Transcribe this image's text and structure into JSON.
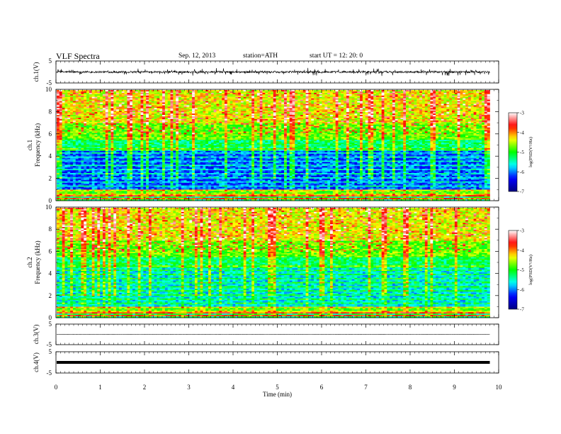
{
  "header": {
    "title": "VLF  Spectra",
    "date": "Sep. 12, 2013",
    "station": "station=ATH",
    "start": "start  UT  =   12: 20: 0"
  },
  "chart_data": [
    {
      "type": "line",
      "panel": "ch1",
      "ylabel": "ch.1(V)",
      "ylim": [
        -5,
        5
      ],
      "yticks": [
        "5",
        "-5"
      ],
      "series_color": "#000000",
      "description_values": "noisy waveform centered at 0 V, amplitude about ±1 V with spikes to about ±2 V"
    },
    {
      "type": "heatmap",
      "panel": "ch1-spectrogram",
      "ylabel_top": "ch.1",
      "ylabel": "Frequency  (kHz)",
      "ylim": [
        0,
        10
      ],
      "yticks": [
        "0",
        "2",
        "4",
        "6",
        "8",
        "10"
      ],
      "colorbar": {
        "label": "log(PSD(V²/Hz)",
        "ticks": [
          "-3",
          "-4",
          "-5",
          "-6",
          "-7"
        ],
        "range": [
          -7,
          -3
        ]
      }
    },
    {
      "type": "heatmap",
      "panel": "ch2-spectrogram",
      "ylabel_top": "ch.2",
      "ylabel": "Frequency  (kHz)",
      "ylim": [
        0,
        10
      ],
      "yticks": [
        "0",
        "2",
        "4",
        "6",
        "8",
        "10"
      ],
      "colorbar": {
        "label": "log(PSD(V²/Hz)",
        "ticks": [
          "-3",
          "-4",
          "-5",
          "-6",
          "-7"
        ],
        "range": [
          -7,
          -3
        ]
      }
    },
    {
      "type": "line",
      "panel": "ch3",
      "ylabel": "ch.3(V)",
      "ylim": [
        -5,
        5
      ],
      "yticks": [
        "5",
        "-5"
      ],
      "series_color": "#000000"
    },
    {
      "type": "line",
      "panel": "ch4",
      "ylabel": "ch.4(V)",
      "ylim": [
        -5,
        5
      ],
      "yticks": [
        "5",
        "-5"
      ],
      "series_color": "#000000"
    }
  ],
  "xaxis": {
    "xlabel": "Time  (min)",
    "xlim": [
      0,
      10
    ],
    "xticks": [
      "0",
      "1",
      "2",
      "3",
      "4",
      "5",
      "6",
      "7",
      "8",
      "9",
      "10"
    ],
    "data_end": 9.8
  },
  "colors": {
    "cmap": [
      "#000080",
      "#0000ff",
      "#00ffff",
      "#00ff00",
      "#ffff00",
      "#ff0000",
      "#ffffff"
    ]
  }
}
